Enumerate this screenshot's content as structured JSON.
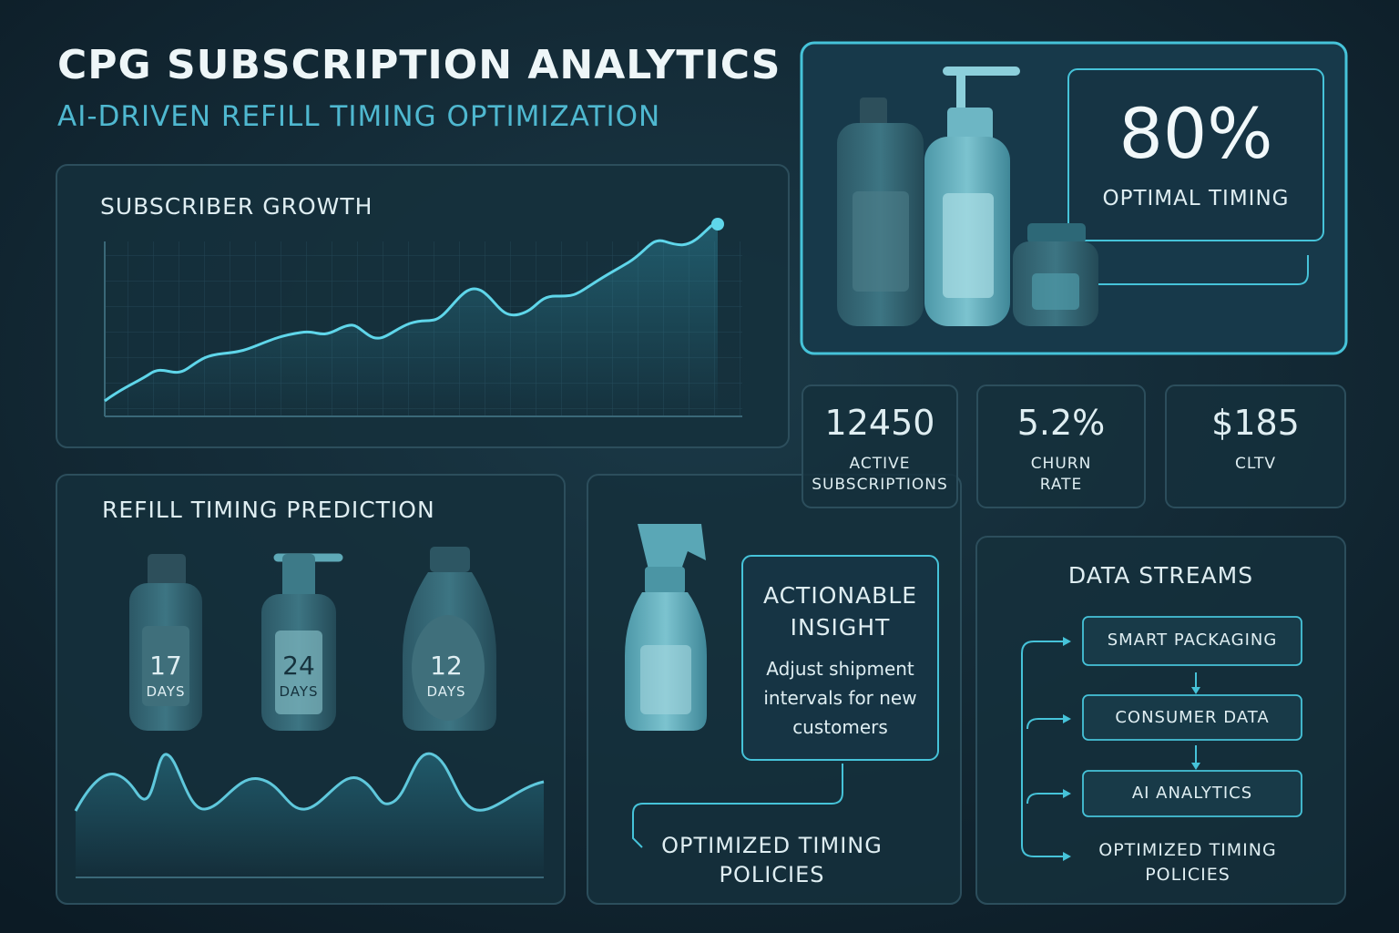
{
  "header": {
    "title": "CPG SUBSCRIPTION ANALYTICS",
    "subtitle": "AI-DRIVEN REFILL TIMING OPTIMIZATION"
  },
  "growth": {
    "title": "SUBSCRIBER GROWTH"
  },
  "hero": {
    "value": "80%",
    "label": "OPTIMAL TIMING"
  },
  "kpis": [
    {
      "value": "12450",
      "label": "ACTIVE SUBSCRIPTIONS"
    },
    {
      "value": "5.2%",
      "label": "CHURN RATE"
    },
    {
      "value": "$185",
      "label": "CLTV"
    }
  ],
  "refill": {
    "title": "REFILL TIMING PREDICTION",
    "bottles": [
      {
        "days": "17",
        "unit": "DAYS"
      },
      {
        "days": "24",
        "unit": "DAYS"
      },
      {
        "days": "12",
        "unit": "DAYS"
      }
    ]
  },
  "insight": {
    "title": "ACTIONABLE INSIGHT",
    "text": "Adjust shipment intervals for new customers",
    "output": "OPTIMIZED TIMING POLICIES"
  },
  "streams": {
    "title": "DATA STREAMS",
    "nodes": [
      "SMART PACKAGING",
      "CONSUMER DATA",
      "AI ANALYTICS"
    ],
    "output": "OPTIMIZED TIMING POLICIES"
  }
}
